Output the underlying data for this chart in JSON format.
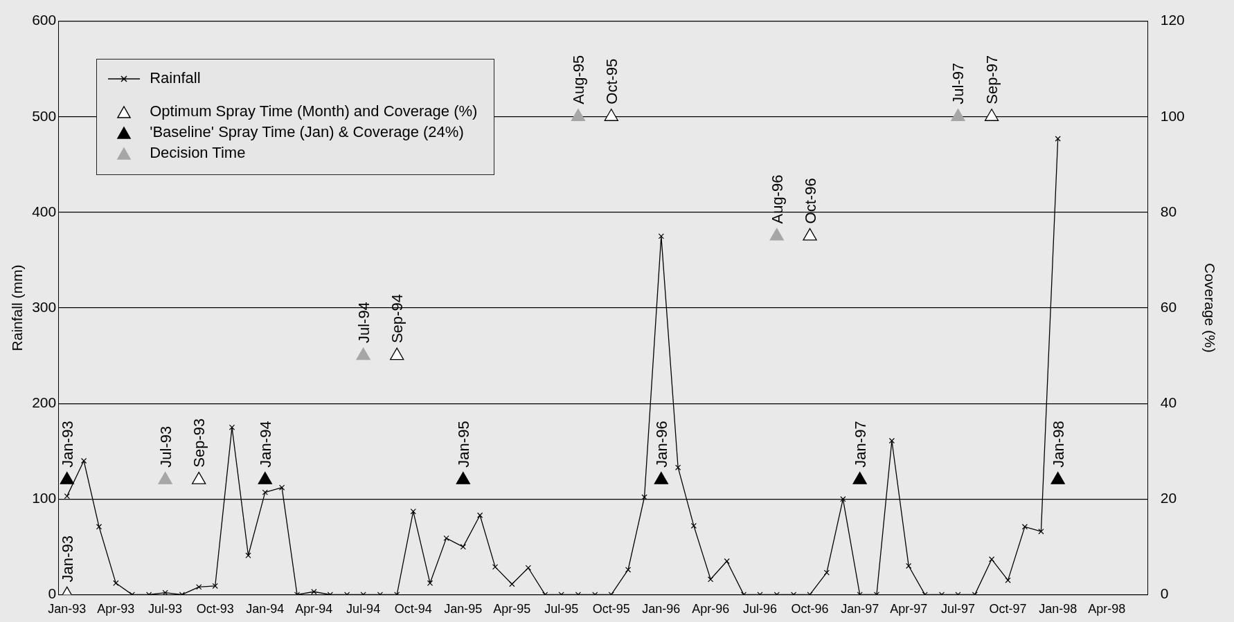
{
  "chart_data": {
    "type": "line",
    "ylabel": "Rainfall (mm)",
    "y2label": "Coverage (%)",
    "xlim": [
      "1992-12-16",
      "1998-06-16"
    ],
    "xticks": [
      {
        "value": "1993-01",
        "label": "Jan-93"
      },
      {
        "value": "1993-04",
        "label": "Apr-93"
      },
      {
        "value": "1993-07",
        "label": "Jul-93"
      },
      {
        "value": "1993-10",
        "label": "Oct-93"
      },
      {
        "value": "1994-01",
        "label": "Jan-94"
      },
      {
        "value": "1994-04",
        "label": "Apr-94"
      },
      {
        "value": "1994-07",
        "label": "Jul-94"
      },
      {
        "value": "1994-10",
        "label": "Oct-94"
      },
      {
        "value": "1995-01",
        "label": "Jan-95"
      },
      {
        "value": "1995-04",
        "label": "Apr-95"
      },
      {
        "value": "1995-07",
        "label": "Jul-95"
      },
      {
        "value": "1995-10",
        "label": "Oct-95"
      },
      {
        "value": "1996-01",
        "label": "Jan-96"
      },
      {
        "value": "1996-04",
        "label": "Apr-96"
      },
      {
        "value": "1996-07",
        "label": "Jul-96"
      },
      {
        "value": "1996-10",
        "label": "Oct-96"
      },
      {
        "value": "1997-01",
        "label": "Jan-97"
      },
      {
        "value": "1997-04",
        "label": "Apr-97"
      },
      {
        "value": "1997-07",
        "label": "Jul-97"
      },
      {
        "value": "1997-10",
        "label": "Oct-97"
      },
      {
        "value": "1998-01",
        "label": "Jan-98"
      },
      {
        "value": "1998-04",
        "label": "Apr-98"
      }
    ],
    "ylim": [
      0,
      600
    ],
    "yticks": [
      0,
      100,
      200,
      300,
      400,
      500,
      600
    ],
    "y2lim": [
      0,
      120
    ],
    "y2ticks": [
      0,
      20,
      40,
      60,
      80,
      100,
      120
    ],
    "grid": "y",
    "legend": "top left",
    "series": [
      {
        "name": "Rainfall",
        "marker": "cross",
        "color": "#000000",
        "x": [
          "1993-01",
          "1993-02",
          "1993-03",
          "1993-04",
          "1993-05",
          "1993-06",
          "1993-07",
          "1993-08",
          "1993-09",
          "1993-10",
          "1993-11",
          "1993-12",
          "1994-01",
          "1994-02",
          "1994-03",
          "1994-04",
          "1994-05",
          "1994-06",
          "1994-07",
          "1994-08",
          "1994-09",
          "1994-10",
          "1994-11",
          "1994-12",
          "1995-01",
          "1995-02",
          "1995-03",
          "1995-04",
          "1995-05",
          "1995-06",
          "1995-07",
          "1995-08",
          "1995-09",
          "1995-10",
          "1995-11",
          "1995-12",
          "1996-01",
          "1996-02",
          "1996-03",
          "1996-04",
          "1996-05",
          "1996-06",
          "1996-07",
          "1996-08",
          "1996-09",
          "1996-10",
          "1996-11",
          "1996-12",
          "1997-01",
          "1997-02",
          "1997-03",
          "1997-04",
          "1997-05",
          "1997-06",
          "1997-07",
          "1997-08",
          "1997-09",
          "1997-10",
          "1997-11",
          "1997-12",
          "1998-01"
        ],
        "values": [
          103,
          140,
          71,
          12,
          0,
          0,
          2,
          0,
          8,
          9,
          175,
          41,
          107,
          112,
          0,
          3,
          0,
          0,
          0,
          0,
          0,
          87,
          12,
          59,
          50,
          83,
          29,
          11,
          28,
          0,
          0,
          0,
          0,
          0,
          26,
          102,
          375,
          133,
          72,
          16,
          35,
          0,
          0,
          0,
          0,
          0,
          23,
          100,
          0,
          0,
          161,
          30,
          0,
          0,
          0,
          0,
          37,
          15,
          71,
          66,
          477
        ]
      },
      {
        "name": "Optimum Spray Time (Month) and Coverage (%)",
        "type": "scatter",
        "marker": "triangle",
        "axis": "y2",
        "color": "#ffffff",
        "x": [
          "1993-01",
          "1993-09",
          "1994-09",
          "1995-10",
          "1996-10",
          "1997-09"
        ],
        "values": [
          0,
          24,
          50,
          100,
          75,
          100
        ],
        "value_labels": [
          "Jan-93",
          "Sep-93",
          "Sep-94",
          "Oct-95",
          "Oct-96",
          "Sep-97"
        ]
      },
      {
        "name": "'Baseline' Spray Time (Jan) & Coverage (24%)",
        "type": "scatter",
        "marker": "triangle",
        "axis": "y2",
        "color": "#000000",
        "x": [
          "1993-01",
          "1994-01",
          "1995-01",
          "1996-01",
          "1997-01",
          "1998-01"
        ],
        "values": [
          24,
          24,
          24,
          24,
          24,
          24
        ],
        "value_labels": [
          "Jan-93",
          "Jan-94",
          "Jan-95",
          "Jan-96",
          "Jan-97",
          "Jan-98"
        ]
      },
      {
        "name": "Decision Time",
        "type": "scatter",
        "marker": "triangle",
        "axis": "y2",
        "color": "#a6a6a6",
        "x": [
          "1993-07",
          "1994-07",
          "1995-08",
          "1996-08",
          "1997-07"
        ],
        "values": [
          24,
          50,
          100,
          75,
          100
        ],
        "value_labels": [
          "Jul-93",
          "Jul-94",
          "Aug-95",
          "Aug-96",
          "Jul-97"
        ]
      }
    ]
  }
}
